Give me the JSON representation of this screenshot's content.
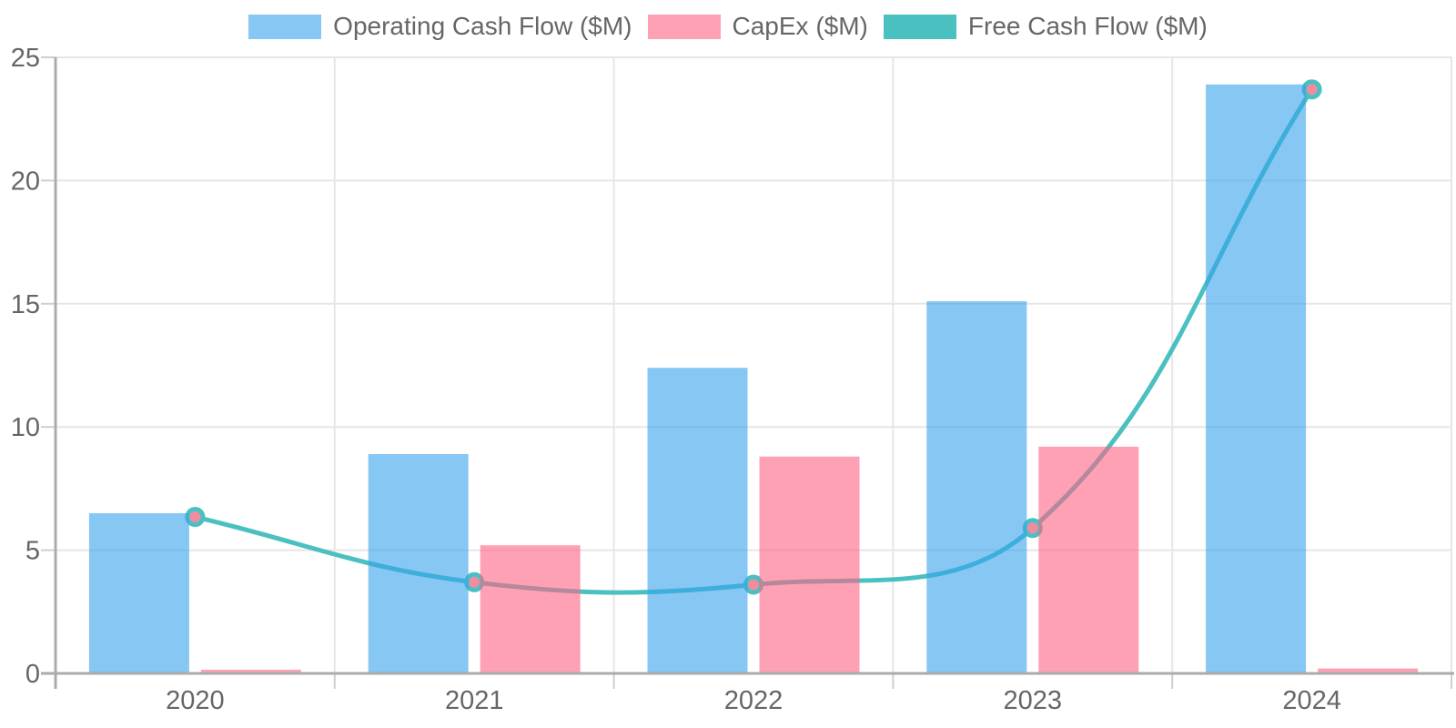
{
  "chart_data": {
    "type": "combo-bar-line",
    "title": "",
    "xlabel": "",
    "ylabel": "",
    "categories": [
      "2020",
      "2021",
      "2022",
      "2023",
      "2024"
    ],
    "series": [
      {
        "name": "Operating Cash Flow ($M)",
        "type": "bar",
        "color": "rgba(54,162,235,0.6)",
        "values": [
          6.5,
          8.9,
          12.4,
          15.1,
          23.9
        ]
      },
      {
        "name": "CapEx ($M)",
        "type": "bar",
        "color": "rgba(255,99,132,0.6)",
        "values": [
          0.15,
          5.2,
          8.8,
          9.2,
          0.2
        ]
      },
      {
        "name": "Free Cash Flow ($M)",
        "type": "line",
        "color": "#4BC0C0",
        "marker_ring_color": "#4BC0C0",
        "marker_fill_color": "#F08CA0",
        "values": [
          6.35,
          3.7,
          3.6,
          5.9,
          23.7
        ]
      }
    ],
    "ylim": [
      0,
      25
    ],
    "yticks": [
      0,
      5,
      10,
      15,
      20,
      25
    ],
    "grid": true,
    "legend_position": "top",
    "axis_text_color": "#666666",
    "grid_color": "#E6E6E6",
    "axis_line_color": "#ABABAB",
    "tick_color": "#CFCFCF"
  }
}
